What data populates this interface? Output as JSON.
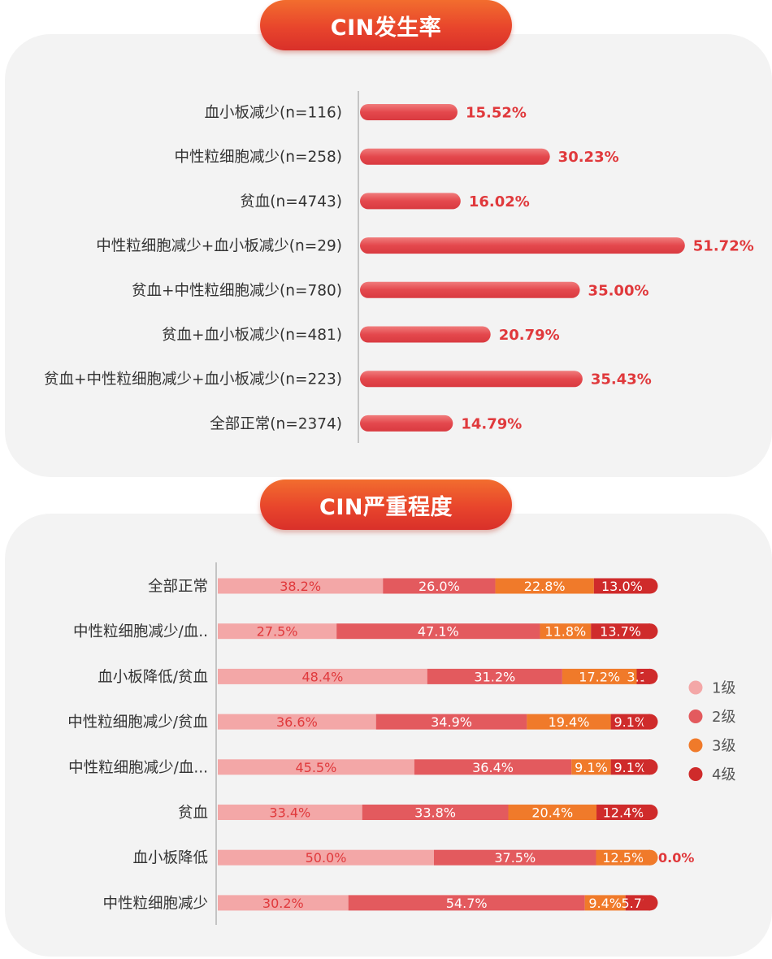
{
  "chart_data": [
    {
      "type": "bar",
      "title": "CIN发生率",
      "orientation": "horizontal",
      "categories": [
        "血小板减少(n=116)",
        "中性粒细胞减少(n=258)",
        "贫血(n=4743)",
        "中性粒细胞减少+血小板减少(n=29)",
        "贫血+中性粒细胞减少(n=780)",
        "贫血+血小板减少(n=481)",
        "贫血+中性粒细胞减少+血小板减少(n=223)",
        "全部正常(n=2374)"
      ],
      "values": [
        15.52,
        30.23,
        16.02,
        51.72,
        35.0,
        20.79,
        35.43,
        14.79
      ],
      "value_labels": [
        "15.52%",
        "30.23%",
        "16.02%",
        "51.72%",
        "35.00%",
        "20.79%",
        "35.43%",
        "14.79%"
      ],
      "xlim": [
        0,
        54
      ],
      "color": "#e8555a"
    },
    {
      "type": "bar",
      "stacked": true,
      "orientation": "horizontal",
      "title": "CIN严重程度",
      "categories": [
        "全部正常",
        "中性粒细胞减少/血..",
        "血小板降低/贫血",
        "中性粒细胞减少/贫血",
        "中性粒细胞减少/血...",
        "贫血",
        "血小板降低",
        "中性粒细胞减少"
      ],
      "series": [
        {
          "name": "1级",
          "color": "#f3a7a7",
          "values": [
            38.2,
            27.5,
            48.4,
            36.6,
            45.5,
            33.4,
            50.0,
            30.2
          ],
          "labels": [
            "38.2%",
            "27.5%",
            "48.4%",
            "36.6%",
            "45.5%",
            "33.4%",
            "50.0%",
            "30.2%"
          ]
        },
        {
          "name": "2级",
          "color": "#e35a5e",
          "values": [
            26.0,
            47.1,
            31.2,
            34.9,
            36.4,
            33.8,
            37.5,
            54.7
          ],
          "labels": [
            "26.0%",
            "47.1%",
            "31.2%",
            "34.9%",
            "36.4%",
            "33.8%",
            "37.5%",
            "54.7%"
          ]
        },
        {
          "name": "3级",
          "color": "#f07a2a",
          "values": [
            22.8,
            11.8,
            17.2,
            19.4,
            9.1,
            20.4,
            12.5,
            9.4
          ],
          "labels": [
            "22.8%",
            "11.8%",
            "17.2%",
            "19.4%",
            "9.1%",
            "20.4%",
            "12.5%",
            "9.4%"
          ]
        },
        {
          "name": "4级",
          "color": "#cf2b2b",
          "values": [
            13.0,
            13.7,
            3.1,
            9.1,
            9.1,
            12.4,
            0.0,
            5.7
          ],
          "labels": [
            "13.0%",
            "13.7%",
            "3.1%",
            "9.1%",
            "9.1%",
            "12.4%",
            "0.0%",
            "5.7%"
          ]
        }
      ],
      "xlim": [
        0,
        100
      ],
      "legend": "right"
    }
  ]
}
